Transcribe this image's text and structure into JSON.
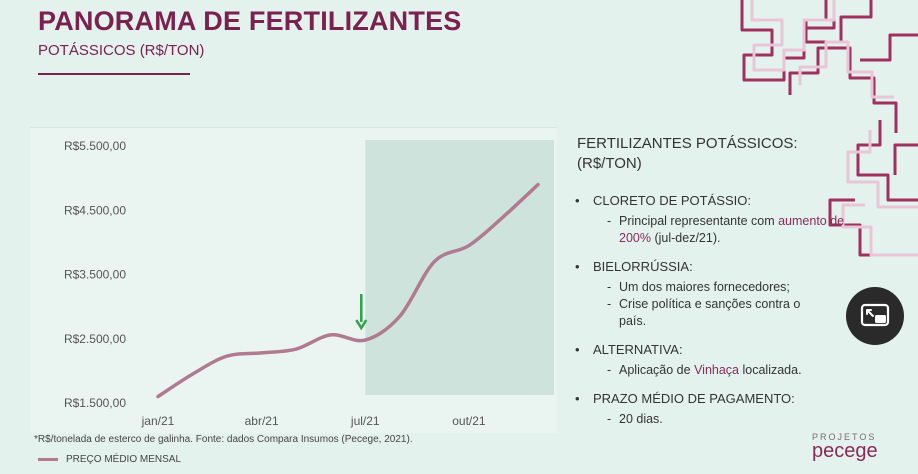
{
  "header": {
    "title": "PANORAMA DE FERTILIZANTES",
    "subtitle": "POTÁSSICOS (R$/TON)"
  },
  "chart_data": {
    "type": "line",
    "x_ticks": [
      "jan/21",
      "abr/21",
      "jul/21",
      "out/21"
    ],
    "y_ticks": [
      "R$1.500,00",
      "R$2.500,00",
      "R$3.500,00",
      "R$4.500,00",
      "R$5.500,00"
    ],
    "ylim": [
      1500,
      5500
    ],
    "series": [
      {
        "name": "PREÇO MÉDIO MENSAL",
        "points": [
          {
            "x": "jan/21",
            "y": 1600
          },
          {
            "x": "fev/21",
            "y": 1950
          },
          {
            "x": "mar/21",
            "y": 2230
          },
          {
            "x": "abr/21",
            "y": 2280
          },
          {
            "x": "mai/21",
            "y": 2340
          },
          {
            "x": "jun/21",
            "y": 2560
          },
          {
            "x": "jul/21",
            "y": 2480
          },
          {
            "x": "ago/21",
            "y": 2850
          },
          {
            "x": "set/21",
            "y": 3700
          },
          {
            "x": "out/21",
            "y": 3950
          },
          {
            "x": "nov/21",
            "y": 4400
          },
          {
            "x": "dez/21",
            "y": 4900
          }
        ]
      }
    ],
    "highlight_from": "jul/21",
    "marker_at": "jul/21",
    "colors": {
      "line": "#b07a8f",
      "highlight": "#c5dcd6",
      "marker": "#2ea34a"
    },
    "footnote": "*R$/tonelada de esterco de galinha. Fonte: dados Compara Insumos (Pecege, 2021).",
    "legend": "PREÇO MÉDIO MENSAL"
  },
  "side": {
    "title": "FERTILIZANTES POTÁSSICOS: (R$/TON)",
    "bullets": [
      {
        "head": "CLORETO DE POTÁSSIO:",
        "sub": [
          {
            "pre": "Principal representante com ",
            "hl": "aumento de 200%",
            "post": " (jul-dez/21)."
          }
        ]
      },
      {
        "head": "BIELORRÚSSIA:",
        "sub": [
          {
            "pre": "Um dos maiores fornecedores;",
            "hl": "",
            "post": ""
          },
          {
            "pre": "Crise política e sanções contra o país.",
            "hl": "",
            "post": ""
          }
        ]
      },
      {
        "head": "ALTERNATIVA:",
        "sub": [
          {
            "pre": "Aplicação de ",
            "hl": "Vinhaça",
            "post": " localizada."
          }
        ]
      },
      {
        "head": "PRAZO MÉDIO DE PAGAMENTO:",
        "sub": [
          {
            "pre": "20 dias.",
            "hl": "",
            "post": ""
          }
        ]
      }
    ]
  },
  "brand": {
    "small": "PROJETOS",
    "big": "pecege"
  },
  "icons": {
    "decor": "maze-pattern",
    "pip": "picture-in-picture-icon",
    "arrow": "arrow-down-icon"
  }
}
